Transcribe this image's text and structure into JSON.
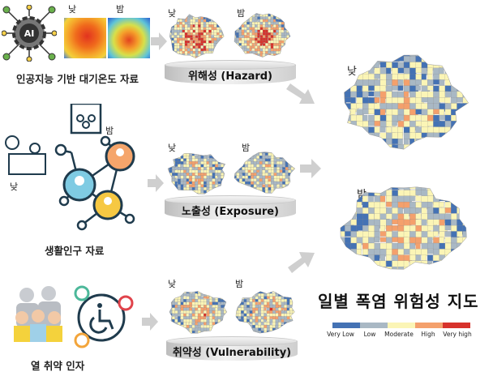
{
  "row1": {
    "caption": "인공지능 기반 대기온도 자료",
    "day": "낮",
    "night": "밤",
    "icon": "ai-gear-icon",
    "maps_day": "낮",
    "maps_night": "밤",
    "pedestal": "위해성 (Hazard)"
  },
  "row2": {
    "caption": "생활인구 자료",
    "day": "낮",
    "night": "밤",
    "icon": "people-network-icon",
    "maps_day": "낮",
    "maps_night": "밤",
    "pedestal": "노출성 (Exposure)"
  },
  "row3": {
    "caption": "열 취약 인자",
    "icon": "elderly-disabled-icon",
    "maps_day": "낮",
    "maps_night": "밤",
    "pedestal": "취약성 (Vulnerability)"
  },
  "result": {
    "day": "낮",
    "night": "밤",
    "title": "일별 폭염 위험성 지도"
  },
  "legend": {
    "labels": [
      "Very Low",
      "Low",
      "Moderate",
      "High",
      "Very high"
    ],
    "colors": [
      "#4472b4",
      "#a9b8c4",
      "#fbf5b6",
      "#f4a06c",
      "#d7322b"
    ]
  }
}
